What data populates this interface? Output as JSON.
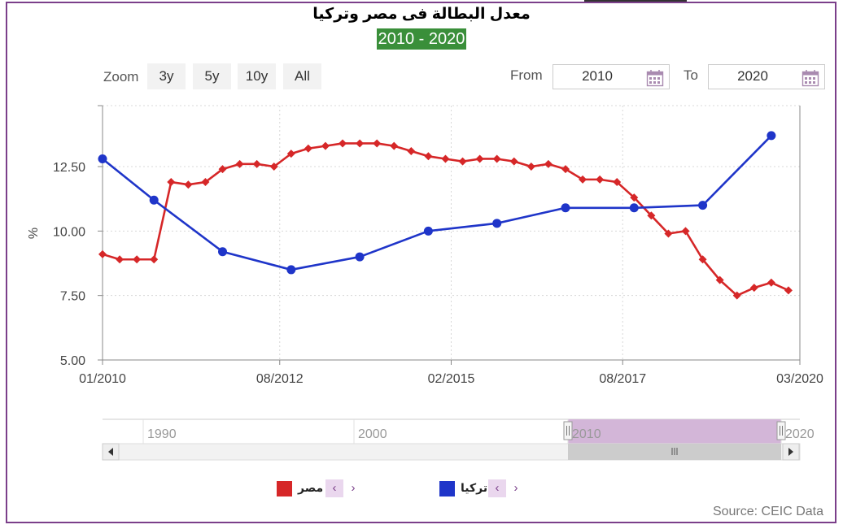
{
  "header": {
    "title": "معدل البطالة فى مصر وتركيا",
    "subtitle": "2010 - 2020"
  },
  "controls": {
    "zoom_label": "Zoom",
    "zoom_buttons": [
      "3y",
      "5y",
      "10y",
      "All"
    ],
    "from_label": "From",
    "from_value": "2010",
    "to_label": "To",
    "to_value": "2020"
  },
  "navigator": {
    "labels": [
      "1990",
      "2000",
      "2010",
      "2020"
    ]
  },
  "legend": [
    {
      "name": "مصر",
      "color": "#d62728"
    },
    {
      "name": "تركيا",
      "color": "#1f35c9"
    }
  ],
  "source": "Source: CEIC Data",
  "colors": {
    "accent": "#7b3f8a",
    "subtitle_bg": "#3a8f3a",
    "egypt": "#d62728",
    "turkey": "#1f35c9",
    "navigator_selection": "#d3b6d8"
  },
  "chart_data": {
    "type": "line",
    "ylabel": "%",
    "ylim": [
      5.0,
      15.0
    ],
    "yticks": [
      "5.00",
      "7.50",
      "10.00",
      "12.50"
    ],
    "xticks": [
      "01/2010",
      "08/2012",
      "02/2015",
      "08/2017",
      "03/2020"
    ],
    "x_range": [
      "2010-01",
      "2020-03"
    ],
    "grid": true,
    "series": [
      {
        "name": "مصر",
        "marker": "diamond",
        "color": "#d62728",
        "points": [
          [
            "2010-01",
            9.1
          ],
          [
            "2010-04",
            8.9
          ],
          [
            "2010-07",
            8.9
          ],
          [
            "2010-10",
            8.9
          ],
          [
            "2011-01",
            11.9
          ],
          [
            "2011-04",
            11.8
          ],
          [
            "2011-07",
            11.9
          ],
          [
            "2011-10",
            12.4
          ],
          [
            "2012-01",
            12.6
          ],
          [
            "2012-04",
            12.6
          ],
          [
            "2012-07",
            12.5
          ],
          [
            "2012-10",
            13.0
          ],
          [
            "2013-01",
            13.2
          ],
          [
            "2013-04",
            13.3
          ],
          [
            "2013-07",
            13.4
          ],
          [
            "2013-10",
            13.4
          ],
          [
            "2014-01",
            13.4
          ],
          [
            "2014-04",
            13.3
          ],
          [
            "2014-07",
            13.1
          ],
          [
            "2014-10",
            12.9
          ],
          [
            "2015-01",
            12.8
          ],
          [
            "2015-04",
            12.7
          ],
          [
            "2015-07",
            12.8
          ],
          [
            "2015-10",
            12.8
          ],
          [
            "2016-01",
            12.7
          ],
          [
            "2016-04",
            12.5
          ],
          [
            "2016-07",
            12.6
          ],
          [
            "2016-10",
            12.4
          ],
          [
            "2017-01",
            12.0
          ],
          [
            "2017-04",
            12.0
          ],
          [
            "2017-07",
            11.9
          ],
          [
            "2017-10",
            11.3
          ],
          [
            "2018-01",
            10.6
          ],
          [
            "2018-04",
            9.9
          ],
          [
            "2018-07",
            10.0
          ],
          [
            "2018-10",
            8.9
          ],
          [
            "2019-01",
            8.1
          ],
          [
            "2019-04",
            7.5
          ],
          [
            "2019-07",
            7.8
          ],
          [
            "2019-10",
            8.0
          ],
          [
            "2020-01",
            7.7
          ]
        ]
      },
      {
        "name": "تركيا",
        "marker": "circle",
        "color": "#1f35c9",
        "points": [
          [
            "2010-01",
            12.8
          ],
          [
            "2010-10",
            11.2
          ],
          [
            "2011-10",
            9.2
          ],
          [
            "2012-10",
            8.5
          ],
          [
            "2013-10",
            9.0
          ],
          [
            "2014-10",
            10.0
          ],
          [
            "2015-10",
            10.3
          ],
          [
            "2016-10",
            10.9
          ],
          [
            "2017-10",
            10.9
          ],
          [
            "2018-10",
            11.0
          ],
          [
            "2019-10",
            13.7
          ]
        ]
      }
    ]
  }
}
